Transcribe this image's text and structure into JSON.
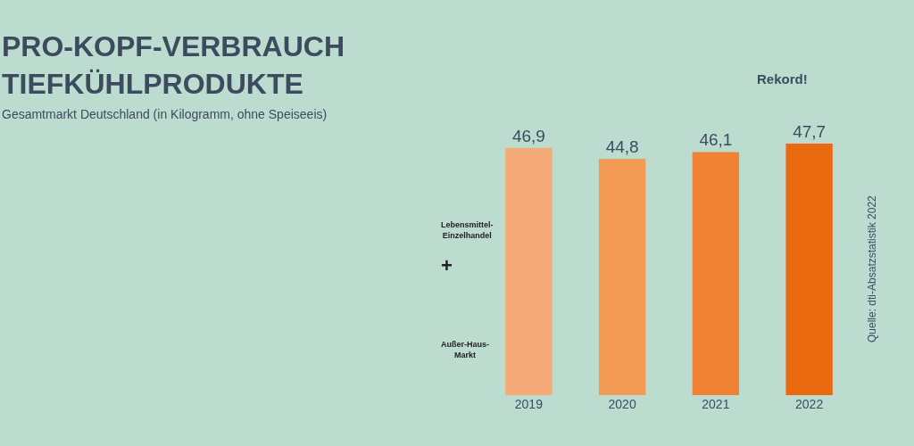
{
  "chart_data": {
    "type": "bar",
    "title": "PRO-KOPF-VERBRAUCH\nTIEFKÜHLPRODUKTE",
    "subtitle": "Gesamtmarkt Deutschland (in Kilogramm, ohne Speiseeis)",
    "categories": [
      "2019",
      "2020",
      "2021",
      "2022"
    ],
    "values": [
      46.9,
      44.8,
      46.1,
      47.7
    ],
    "colors": [
      "#f5ab78",
      "#f39a55",
      "#f08236",
      "#eb6a10"
    ],
    "value_labels": [
      "46,9",
      "44,8",
      "46,1",
      "47,7"
    ],
    "annotations": [
      "Rekord!",
      "Lebensmittel-\nEinzelhandel",
      "+",
      "Außer-Haus-\nMarkt",
      "Quelle: dti-Absatzstatistik 2022"
    ],
    "grid": false,
    "legend": false
  }
}
